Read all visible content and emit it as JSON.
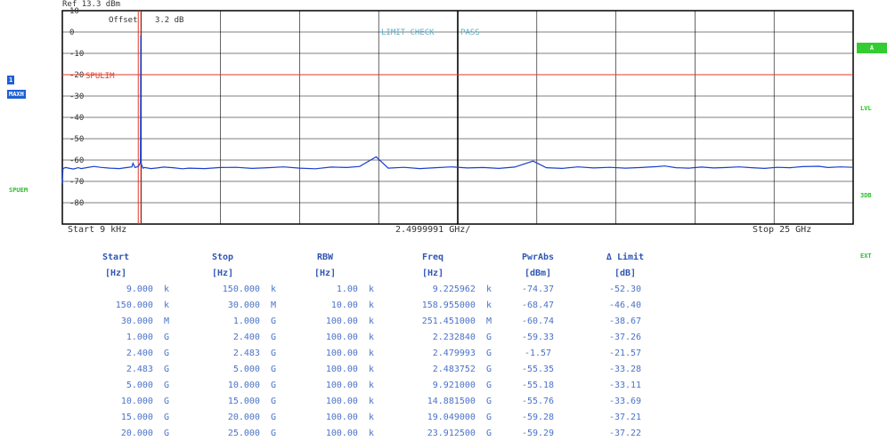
{
  "header": {
    "ref_label": "Ref",
    "ref_value": "13.3 dBm"
  },
  "trace_panel": {
    "offset_label": "Offset",
    "offset_value": "3.2 dB",
    "limit_check_label": "LIMIT CHECK",
    "limit_check_result": "PASS",
    "limit_line_label": "SPULIM"
  },
  "side_labels": {
    "trace_number": "1",
    "trace_mode": "MAXH",
    "spuem": "SPUEM",
    "marker_a": "A",
    "lvl": "LVL",
    "three_db": "3DB",
    "ext": "EXT"
  },
  "footer": {
    "start": "Start  9 kHz",
    "span": "2.4999991 GHz/",
    "stop": "Stop  25 GHz"
  },
  "colors": {
    "trace": "#1a3fd0",
    "limit_line": "#e03a2a",
    "grid": "#000000",
    "table_text": "#4a73c8",
    "table_header": "#2f56b3",
    "limit_check": "#5bb0c8",
    "side_green": "#33cc33",
    "side_blue": "#1e5fd6"
  },
  "chart_data": {
    "type": "line",
    "title": "",
    "xlabel": "",
    "ylabel": "",
    "x_unit": "GHz",
    "xlim": [
      9e-06,
      25
    ],
    "ylim": [
      -90,
      10
    ],
    "y_ticks": [
      10,
      0,
      -10,
      -20,
      -30,
      -40,
      -50,
      -60,
      -70,
      -80
    ],
    "y_tick_labels": [
      "10",
      "0",
      "-10",
      "-20",
      "-30",
      "-40",
      "-50",
      "-60",
      "-70",
      "-80"
    ],
    "grid": true,
    "limit_line": {
      "name": "SPULIM",
      "y": -20
    },
    "marker_lines_x": [
      2.4,
      2.483
    ],
    "series": [
      {
        "x": [
          9e-06,
          0.02,
          0.1,
          0.2,
          0.35,
          0.5,
          0.6,
          0.8,
          1.0,
          1.2,
          1.5,
          1.8,
          2.0,
          2.2,
          2.2328,
          2.3,
          2.4,
          2.44,
          2.47,
          2.48,
          2.49,
          2.5,
          2.55,
          2.6,
          2.8,
          3.0,
          3.2,
          3.5,
          3.8,
          4.0,
          4.5,
          5.0,
          5.5,
          6.0,
          6.5,
          7.0,
          7.5,
          8.0,
          8.5,
          9.0,
          9.4,
          9.921,
          10.3,
          10.8,
          11.3,
          11.8,
          12.3,
          12.8,
          13.3,
          13.8,
          14.3,
          14.8815,
          15.3,
          15.8,
          16.3,
          16.8,
          17.3,
          17.8,
          18.3,
          18.8,
          19.049,
          19.4,
          19.8,
          20.2,
          20.6,
          21.0,
          21.4,
          21.8,
          22.2,
          22.6,
          23.0,
          23.4,
          23.9125,
          24.2,
          24.6,
          25.0
        ],
        "y": [
          -71,
          -64,
          -63.5,
          -63.8,
          -64.2,
          -63.6,
          -64.0,
          -63.5,
          -63.0,
          -63.4,
          -63.8,
          -64.0,
          -63.6,
          -63.2,
          -61.5,
          -63.5,
          -63.0,
          -62.0,
          -61.0,
          -1.57,
          -61.0,
          -62.0,
          -63.8,
          -63.5,
          -64.0,
          -63.7,
          -63.3,
          -63.6,
          -64.1,
          -63.8,
          -64.0,
          -63.5,
          -63.4,
          -63.9,
          -63.6,
          -63.2,
          -63.8,
          -64.1,
          -63.3,
          -63.5,
          -63.0,
          -58.5,
          -63.8,
          -63.4,
          -64.0,
          -63.6,
          -63.2,
          -63.7,
          -63.5,
          -63.9,
          -63.3,
          -60.5,
          -63.6,
          -63.9,
          -63.2,
          -63.7,
          -63.4,
          -63.8,
          -63.5,
          -63.1,
          -62.8,
          -63.6,
          -63.8,
          -63.3,
          -63.7,
          -63.5,
          -63.2,
          -63.6,
          -63.9,
          -63.4,
          -63.6,
          -63.1,
          -62.9,
          -63.5,
          -63.2,
          -63.4
        ]
      }
    ]
  },
  "table": {
    "headers": [
      "Start",
      "Stop",
      "RBW",
      "Freq",
      "PwrAbs",
      "Δ Limit"
    ],
    "units": [
      "[Hz]",
      "[Hz]",
      "[Hz]",
      "[Hz]",
      "[dBm]",
      "[dB]"
    ],
    "rows": [
      [
        "9.000  k",
        "150.000  k",
        "1.00  k",
        "9.225962  k",
        "-74.37",
        "-52.30"
      ],
      [
        "150.000  k",
        "30.000  M",
        "10.00  k",
        "158.955000  k",
        "-68.47",
        "-46.40"
      ],
      [
        "30.000  M",
        "1.000  G",
        "100.00  k",
        "251.451000  M",
        "-60.74",
        "-38.67"
      ],
      [
        "1.000  G",
        "2.400  G",
        "100.00  k",
        "2.232840  G",
        "-59.33",
        "-37.26"
      ],
      [
        "2.400  G",
        "2.483  G",
        "100.00  k",
        "2.479993  G",
        "-1.57",
        "-21.57"
      ],
      [
        "2.483  G",
        "5.000  G",
        "100.00  k",
        "2.483752  G",
        "-55.35",
        "-33.28"
      ],
      [
        "5.000  G",
        "10.000  G",
        "100.00  k",
        "9.921000  G",
        "-55.18",
        "-33.11"
      ],
      [
        "10.000  G",
        "15.000  G",
        "100.00  k",
        "14.881500  G",
        "-55.76",
        "-33.69"
      ],
      [
        "15.000  G",
        "20.000  G",
        "100.00  k",
        "19.049000  G",
        "-59.28",
        "-37.21"
      ],
      [
        "20.000  G",
        "25.000  G",
        "100.00  k",
        "23.912500  G",
        "-59.29",
        "-37.22"
      ]
    ]
  }
}
